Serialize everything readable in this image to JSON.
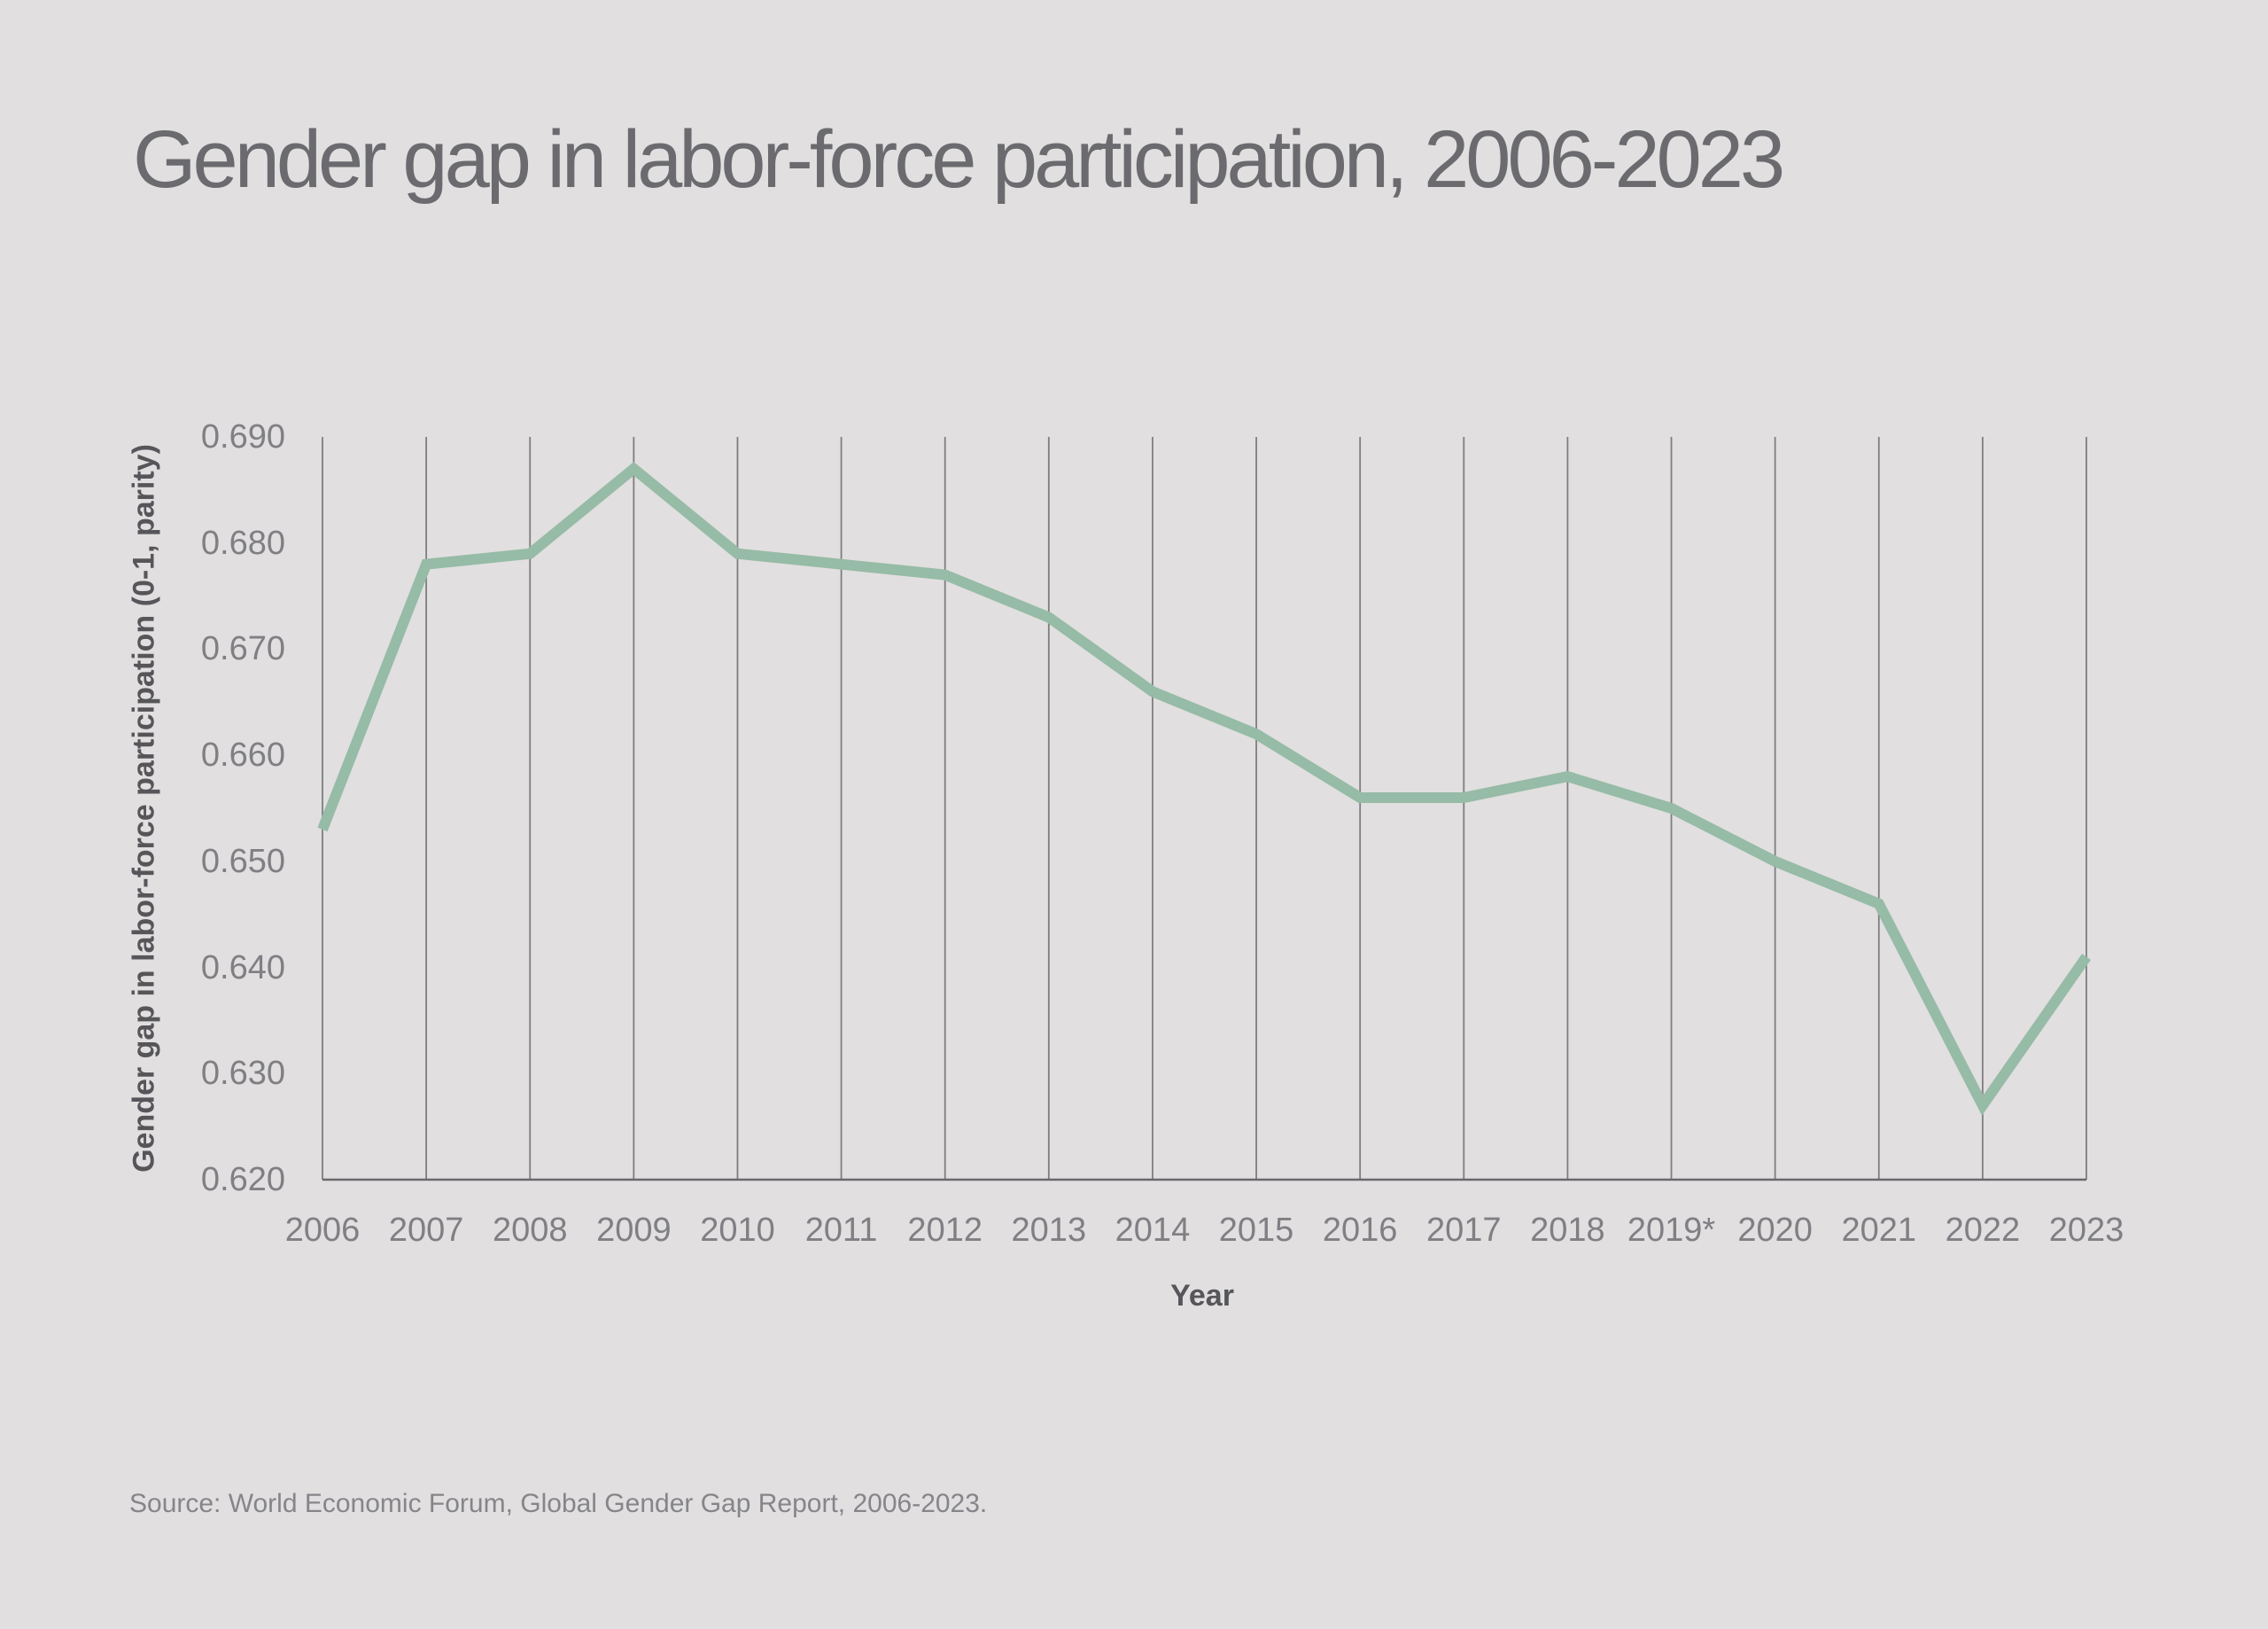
{
  "page": {
    "background": "#e1dfdf"
  },
  "header": {
    "title": "Gender gap in labor-force participation, 2006-2023"
  },
  "chart_data": {
    "type": "line",
    "title": "Gender gap in labor-force participation, 2006-2023",
    "xlabel": "Year",
    "ylabel": "Gender gap in labor-force participation (0-1, parity)",
    "categories": [
      "2006",
      "2007",
      "2008",
      "2009",
      "2010",
      "2011",
      "2012",
      "2013",
      "2014",
      "2015",
      "2016",
      "2017",
      "2018",
      "2019*",
      "2020",
      "2021",
      "2022",
      "2023"
    ],
    "values": [
      0.653,
      0.678,
      0.679,
      0.687,
      0.679,
      0.678,
      0.677,
      0.673,
      0.666,
      0.662,
      0.656,
      0.656,
      0.658,
      0.655,
      0.65,
      0.646,
      0.627,
      0.641
    ],
    "ylim": [
      0.62,
      0.69
    ],
    "y_ticks": [
      0.62,
      0.63,
      0.64,
      0.65,
      0.66,
      0.67,
      0.68,
      0.69
    ],
    "y_tick_labels": [
      "0.620",
      "0.630",
      "0.640",
      "0.650",
      "0.660",
      "0.670",
      "0.680",
      "0.690"
    ],
    "grid": "vertical-only",
    "legend": "none",
    "line_color": "#96bba6",
    "gridline_color": "#7e7e80",
    "axis_line_color": "#69696d"
  },
  "footer": {
    "source": "Source: World Economic Forum, Global Gender Gap Report, 2006-2023."
  }
}
